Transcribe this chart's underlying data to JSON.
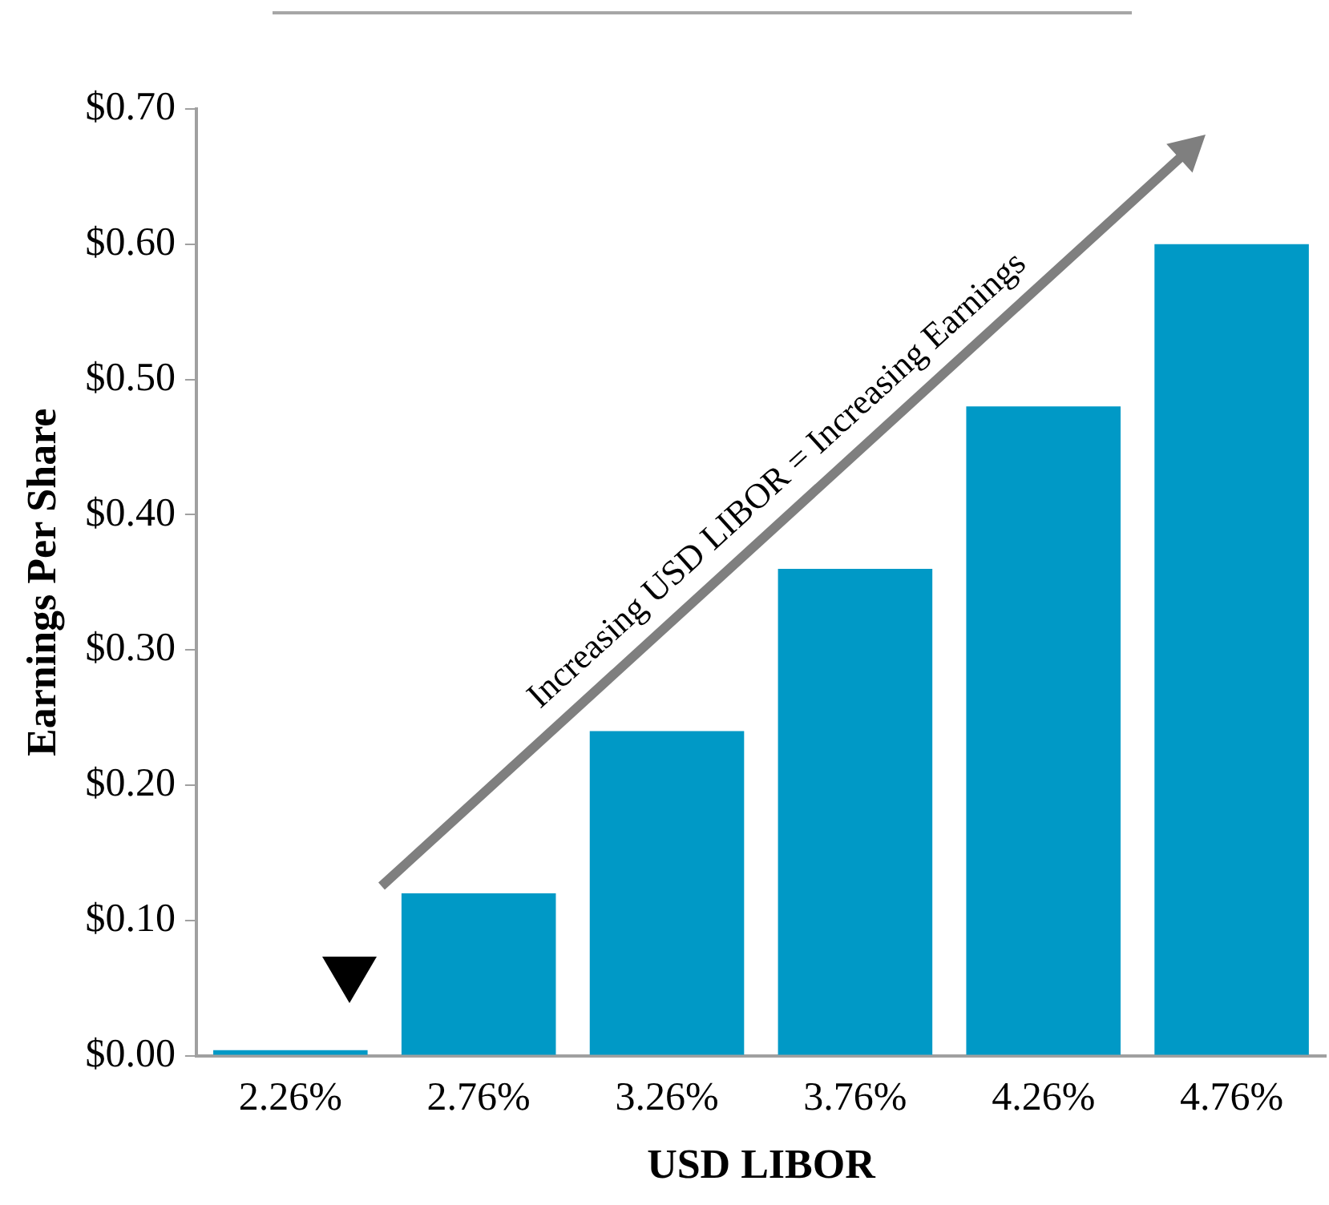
{
  "chart_data": {
    "type": "bar",
    "xlabel": "USD LIBOR",
    "ylabel": "Earnings Per Share",
    "categories": [
      "2.26%",
      "2.76%",
      "3.26%",
      "3.76%",
      "4.26%",
      "4.76%"
    ],
    "values": [
      0.004,
      0.12,
      0.24,
      0.36,
      0.48,
      0.6
    ],
    "color": "#0099c6",
    "ylim": [
      0,
      0.7
    ],
    "yticks": [
      {
        "value": 0,
        "label": "$0.00"
      },
      {
        "value": 0.1,
        "label": "$0.10"
      },
      {
        "value": 0.2,
        "label": "$0.20"
      },
      {
        "value": 0.3,
        "label": "$0.30"
      },
      {
        "value": 0.4,
        "label": "$0.40"
      },
      {
        "value": 0.5,
        "label": "$0.50"
      },
      {
        "value": 0.6,
        "label": "$0.60"
      },
      {
        "value": 0.7,
        "label": "$0.70"
      }
    ],
    "grid": false,
    "legend": false,
    "annotations": [
      "Increasing USD LIBOR = Increasing Earnings"
    ]
  }
}
